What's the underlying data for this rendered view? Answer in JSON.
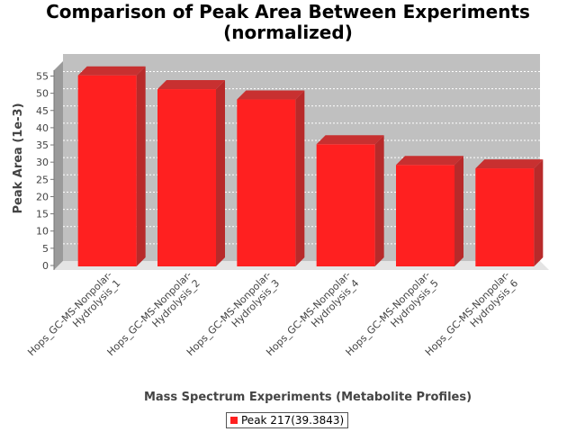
{
  "chart_data": {
    "type": "bar",
    "title_lines": [
      "Comparison of Peak Area Between Experiments",
      "(normalized)"
    ],
    "xlabel": "Mass Spectrum Experiments (Metabolite Profiles)",
    "ylabel": "Peak Area (1e-3)",
    "ylim": [
      0,
      58
    ],
    "yticks": [
      0,
      5,
      10,
      15,
      20,
      25,
      30,
      35,
      40,
      45,
      50,
      55
    ],
    "grid": true,
    "categories": [
      "Hops_GC-MS-Nonpolar-Hydrolysis_1",
      "Hops_GC-MS-Nonpolar-Hydrolysis_2",
      "Hops_GC-MS-Nonpolar-Hydrolysis_3",
      "Hops_GC-MS-Nonpolar-Hydrolysis_4",
      "Hops_GC-MS-Nonpolar-Hydrolysis_5",
      "Hops_GC-MS-Nonpolar-Hydrolysis_6"
    ],
    "category_lines": [
      [
        "Hops_GC-MS-Nonpolar-",
        "Hydrolysis_1"
      ],
      [
        "Hops_GC-MS-Nonpolar-",
        "Hydrolysis_2"
      ],
      [
        "Hops_GC-MS-Nonpolar-",
        "Hydrolysis_3"
      ],
      [
        "Hops_GC-MS-Nonpolar-",
        "Hydrolysis_4"
      ],
      [
        "Hops_GC-MS-Nonpolar-",
        "Hydrolysis_5"
      ],
      [
        "Hops_GC-MS-Nonpolar-",
        "Hydrolysis_6"
      ]
    ],
    "series": [
      {
        "name": "Peak 217(39.3843)",
        "color": "#ff2020",
        "values": [
          56.5,
          52.5,
          49.5,
          36.5,
          30.5,
          29.5
        ]
      }
    ],
    "legend_position": "bottom",
    "colors": {
      "plot_background": "#c0c0c0",
      "wall": "#e4e4e4",
      "grid": "#ffffff"
    }
  }
}
